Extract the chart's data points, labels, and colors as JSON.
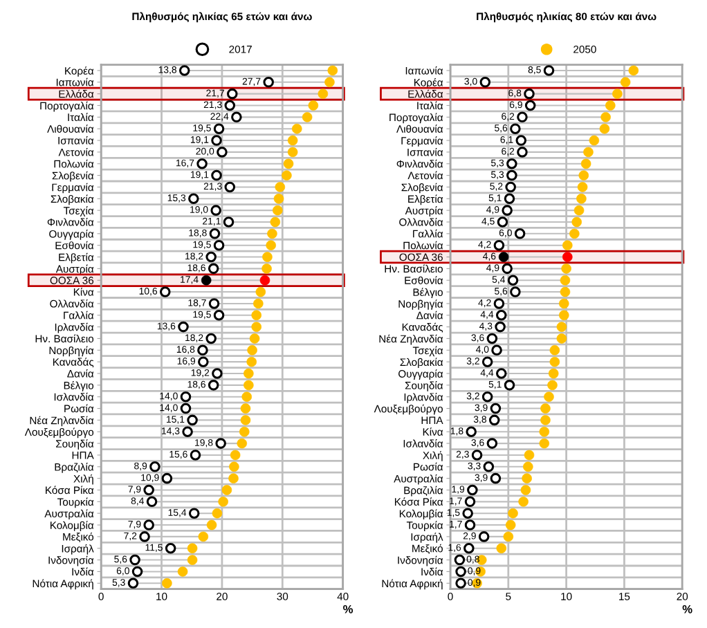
{
  "chart_data": [
    {
      "type": "scatter",
      "title": "Πληθυσμός ηλικίας 65 ετών και άνω",
      "xlabel": "%",
      "orientation": "horizontal",
      "categories": [
        "Κορέα",
        "Ιαπωνία",
        "Ελλάδα",
        "Πορτογαλία",
        "Ιταλία",
        "Λιθουανία",
        "Ισπανία",
        "Λετονία",
        "Πολωνία",
        "Σλοβενία",
        "Γερμανία",
        "Σλοβακία",
        "Τσεχία",
        "Φινλανδία",
        "Ουγγαρία",
        "Εσθονία",
        "Ελβετία",
        "Αυστρία",
        "ΟΟΣΑ 36",
        "Κίνα",
        "Ολλανδία",
        "Γαλλία",
        "Ιρλανδία",
        "Ην. Βασίλειο",
        "Νορβηγία",
        "Καναδάς",
        "Δανία",
        "Βέλγιο",
        "Ισλανδία",
        "Ρωσία",
        "Νέα Ζηλανδία",
        "Λουξεμβούργο",
        "Σουηδία",
        "ΗΠΑ",
        "Βραζιλία",
        "Χιλή",
        "Κόσα Ρίκα",
        "Τουρκία",
        "Αυστραλία",
        "Κολομβία",
        "Μεξικό",
        "Ισραήλ",
        "Ινδονησία",
        "Ινδία",
        "Νότια Αφρική"
      ],
      "series": [
        {
          "name": "2017",
          "color": "#000000",
          "colors": [
            "#ffffff",
            "#ffffff",
            "#ffffff",
            "#ffffff",
            "#ffffff",
            "#ffffff",
            "#ffffff",
            "#ffffff",
            "#ffffff",
            "#ffffff",
            "#ffffff",
            "#ffffff",
            "#ffffff",
            "#ffffff",
            "#ffffff",
            "#ffffff",
            "#ffffff",
            "#ffffff",
            "#000000",
            "#ffffff",
            "#ffffff",
            "#ffffff",
            "#ffffff",
            "#ffffff",
            "#ffffff",
            "#ffffff",
            "#ffffff",
            "#ffffff",
            "#ffffff",
            "#ffffff",
            "#ffffff",
            "#ffffff",
            "#ffffff",
            "#ffffff",
            "#ffffff",
            "#ffffff",
            "#ffffff",
            "#ffffff",
            "#ffffff",
            "#ffffff",
            "#ffffff",
            "#ffffff",
            "#ffffff",
            "#ffffff",
            "#ffffff"
          ],
          "values": [
            13.8,
            27.7,
            21.7,
            21.3,
            22.4,
            19.5,
            19.1,
            20.0,
            16.7,
            19.1,
            21.3,
            15.3,
            19.0,
            21.1,
            18.8,
            19.5,
            18.2,
            18.6,
            17.4,
            10.6,
            18.7,
            19.5,
            13.6,
            18.2,
            16.8,
            16.9,
            19.2,
            18.6,
            14.0,
            14.0,
            15.1,
            14.3,
            19.8,
            15.6,
            8.9,
            10.9,
            7.9,
            8.4,
            15.4,
            7.9,
            7.2,
            11.5,
            5.6,
            6.0,
            5.3
          ],
          "value_labels": [
            "13,8",
            "27,7",
            "21,7",
            "21,3",
            "22,4",
            "19,5",
            "19,1",
            "20,0",
            "16,7",
            "19,1",
            "21,3",
            "15,3",
            "19,0",
            "21,1",
            "18,8",
            "19,5",
            "18,2",
            "18,6",
            "17,4",
            "10,6",
            "18,7",
            "19,5",
            "13,6",
            "18,2",
            "16,8",
            "16,9",
            "19,2",
            "18,6",
            "14,0",
            "14,0",
            "15,1",
            "14,3",
            "19,8",
            "15,6",
            "8,9",
            "10,9",
            "7,9",
            "8,4",
            "15,4",
            "7,9",
            "7,2",
            "11,5",
            "5,6",
            "6,0",
            "5,3"
          ]
        },
        {
          "color": "#ffc000",
          "colors": [
            "#ffc000",
            "#ffc000",
            "#ffc000",
            "#ffc000",
            "#ffc000",
            "#ffc000",
            "#ffc000",
            "#ffc000",
            "#ffc000",
            "#ffc000",
            "#ffc000",
            "#ffc000",
            "#ffc000",
            "#ffc000",
            "#ffc000",
            "#ffc000",
            "#ffc000",
            "#ffc000",
            "#ff0000",
            "#ffc000",
            "#ffc000",
            "#ffc000",
            "#ffc000",
            "#ffc000",
            "#ffc000",
            "#ffc000",
            "#ffc000",
            "#ffc000",
            "#ffc000",
            "#ffc000",
            "#ffc000",
            "#ffc000",
            "#ffc000",
            "#ffc000",
            "#ffc000",
            "#ffc000",
            "#ffc000",
            "#ffc000",
            "#ffc000",
            "#ffc000",
            "#ffc000",
            "#ffc000",
            "#ffc000",
            "#ffc000",
            "#ffc000"
          ],
          "values": [
            38.3,
            37.8,
            36.7,
            35.1,
            34.1,
            32.4,
            31.7,
            31.7,
            31.0,
            30.7,
            29.6,
            29.4,
            29.2,
            28.8,
            28.3,
            28.1,
            27.5,
            27.4,
            27.1,
            26.4,
            26.0,
            25.7,
            25.7,
            25.4,
            25.0,
            24.9,
            24.4,
            24.4,
            24.1,
            23.9,
            23.9,
            23.7,
            23.3,
            22.2,
            22.0,
            21.9,
            20.8,
            20.2,
            19.2,
            18.3,
            16.9,
            15.1,
            15.1,
            13.5,
            10.9
          ]
        }
      ],
      "xlim": [
        0,
        40
      ],
      "xticks": [
        0,
        10,
        20,
        30,
        40
      ],
      "grid": true,
      "legend": "top",
      "marker": "circle",
      "bands": [
        {
          "axis": "y",
          "from": "Ελλάδα",
          "to": "Ελλάδα",
          "color": "#c00000"
        },
        {
          "axis": "y",
          "from": "ΟΟΣΑ 36",
          "to": "ΟΟΣΑ 36",
          "color": "#c00000"
        }
      ]
    },
    {
      "type": "scatter",
      "title": "Πληθυσμός ηλικίας 80 ετών και άνω",
      "xlabel": "%",
      "orientation": "horizontal",
      "categories": [
        "Ιαπωνία",
        "Κορέα",
        "Ελλάδα",
        "Ιταλία",
        "Πορτογαλία",
        "Λιθουανία",
        "Γερμανία",
        "Ισπανία",
        "Φινλανδία",
        "Λετονία",
        "Σλοβενία",
        "Ελβετία",
        "Αυστρία",
        "Ολλανδία",
        "Γαλλία",
        "Πολωνία",
        "ΟΟΣΑ 36",
        "Ην. Βασίλειο",
        "Εσθονία",
        "Βέλγιο",
        "Νορβηγία",
        "Δανία",
        "Καναδάς",
        "Νέα Ζηλανδία",
        "Τσεχία",
        "Σλοβακία",
        "Ουγγαρία",
        "Σουηδία",
        "Ιρλανδία",
        "Λουξεμβούργο",
        "ΗΠΑ",
        "Κίνα",
        "Ισλανδία",
        "Χιλή",
        "Ρωσία",
        "Αυστραλία",
        "Βραζιλία",
        "Κόσα Ρίκα",
        "Κολομβία",
        "Τουρκία",
        "Ισραήλ",
        "Μεξικό",
        "Ινδονησία",
        "Ινδία",
        "Νότια Αφρική"
      ],
      "series": [
        {
          "color": "#000000",
          "colors": [
            "#ffffff",
            "#ffffff",
            "#ffffff",
            "#ffffff",
            "#ffffff",
            "#ffffff",
            "#ffffff",
            "#ffffff",
            "#ffffff",
            "#ffffff",
            "#ffffff",
            "#ffffff",
            "#ffffff",
            "#ffffff",
            "#ffffff",
            "#ffffff",
            "#000000",
            "#ffffff",
            "#ffffff",
            "#ffffff",
            "#ffffff",
            "#ffffff",
            "#ffffff",
            "#ffffff",
            "#ffffff",
            "#ffffff",
            "#ffffff",
            "#ffffff",
            "#ffffff",
            "#ffffff",
            "#ffffff",
            "#ffffff",
            "#ffffff",
            "#ffffff",
            "#ffffff",
            "#ffffff",
            "#ffffff",
            "#ffffff",
            "#ffffff",
            "#ffffff",
            "#ffffff",
            "#ffffff",
            "#ffffff",
            "#ffffff",
            "#ffffff"
          ],
          "values": [
            8.5,
            3.0,
            6.8,
            6.9,
            6.2,
            5.6,
            6.1,
            6.2,
            5.3,
            5.3,
            5.2,
            5.1,
            4.9,
            4.5,
            6.0,
            4.2,
            4.6,
            4.9,
            5.4,
            5.6,
            4.2,
            4.4,
            4.3,
            3.6,
            4.0,
            3.2,
            4.4,
            5.1,
            3.2,
            3.9,
            3.8,
            1.8,
            3.6,
            2.3,
            3.3,
            3.9,
            1.9,
            1.7,
            1.5,
            1.7,
            2.9,
            1.6,
            0.8,
            0.9,
            0.9
          ],
          "value_labels": [
            "8,5",
            "3,0",
            "6,8",
            "6,9",
            "6,2",
            "5,6",
            "6,1",
            "6,2",
            "5,3",
            "5,3",
            "5,2",
            "5,1",
            "4,9",
            "4,5",
            "6,0",
            "4,2",
            "4,6",
            "4,9",
            "5,4",
            "5,6",
            "4,2",
            "4,4",
            "4,3",
            "3,6",
            "4,0",
            "3,2",
            "4,4",
            "5,1",
            "3,2",
            "3,9",
            "3,8",
            "1,8",
            "3,6",
            "2,3",
            "3,3",
            "3,9",
            "1,9",
            "1,7",
            "1,5",
            "1,7",
            "2,9",
            "1,6",
            "0,8",
            "0,9",
            "0,9"
          ]
        },
        {
          "name": "2050",
          "color": "#ffc000",
          "colors": [
            "#ffc000",
            "#ffc000",
            "#ffc000",
            "#ffc000",
            "#ffc000",
            "#ffc000",
            "#ffc000",
            "#ffc000",
            "#ffc000",
            "#ffc000",
            "#ffc000",
            "#ffc000",
            "#ffc000",
            "#ffc000",
            "#ffc000",
            "#ffc000",
            "#ff0000",
            "#ffc000",
            "#ffc000",
            "#ffc000",
            "#ffc000",
            "#ffc000",
            "#ffc000",
            "#ffc000",
            "#ffc000",
            "#ffc000",
            "#ffc000",
            "#ffc000",
            "#ffc000",
            "#ffc000",
            "#ffc000",
            "#ffc000",
            "#ffc000",
            "#ffc000",
            "#ffc000",
            "#ffc000",
            "#ffc000",
            "#ffc000",
            "#ffc000",
            "#ffc000",
            "#ffc000",
            "#ffc000",
            "#ffc000",
            "#ffc000",
            "#ffc000"
          ],
          "values": [
            15.8,
            15.1,
            14.4,
            13.8,
            13.4,
            13.3,
            12.4,
            11.9,
            11.7,
            11.5,
            11.4,
            11.3,
            11.1,
            10.9,
            10.7,
            10.1,
            10.1,
            10.0,
            9.9,
            9.9,
            9.8,
            9.8,
            9.6,
            9.6,
            9.0,
            9.0,
            8.9,
            8.8,
            8.5,
            8.2,
            8.2,
            8.1,
            8.1,
            6.8,
            6.7,
            6.6,
            6.5,
            6.3,
            5.4,
            5.2,
            5.0,
            4.4,
            2.7,
            2.6,
            2.3
          ]
        }
      ],
      "xlim": [
        0,
        20
      ],
      "xticks": [
        0,
        5,
        10,
        15,
        20
      ],
      "grid": true,
      "legend": "top",
      "marker": "circle",
      "bands": [
        {
          "axis": "y",
          "from": "Ελλάδα",
          "to": "Ελλάδα",
          "color": "#c00000"
        },
        {
          "axis": "y",
          "from": "ΟΟΣΑ 36",
          "to": "ΟΟΣΑ 36",
          "color": "#c00000"
        }
      ]
    }
  ]
}
